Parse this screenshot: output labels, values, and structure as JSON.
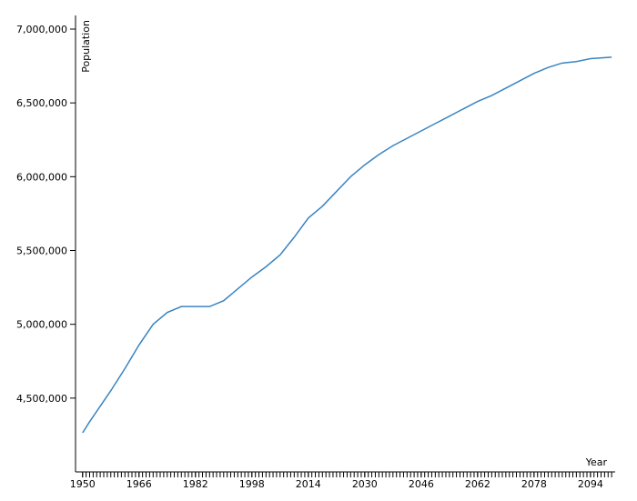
{
  "chart_data": {
    "type": "line",
    "x_label": "Year",
    "y_label": "Population",
    "x": [
      1950,
      1952,
      1954,
      1958,
      1962,
      1966,
      1970,
      1974,
      1978,
      1982,
      1986,
      1990,
      1994,
      1998,
      2002,
      2006,
      2010,
      2014,
      2018,
      2022,
      2026,
      2030,
      2034,
      2038,
      2042,
      2046,
      2050,
      2054,
      2058,
      2062,
      2066,
      2070,
      2074,
      2078,
      2082,
      2086,
      2090,
      2094,
      2100
    ],
    "series": [
      {
        "color": "#3a84c0",
        "values": [
          4265000,
          4340000,
          4410000,
          4550000,
          4700000,
          4860000,
          5000000,
          5080000,
          5120000,
          5120000,
          5120000,
          5160000,
          5240000,
          5320000,
          5390000,
          5470000,
          5590000,
          5720000,
          5800000,
          5900000,
          6000000,
          6080000,
          6150000,
          6210000,
          6260000,
          6310000,
          6360000,
          6410000,
          6460000,
          6510000,
          6550000,
          6600000,
          6650000,
          6700000,
          6740000,
          6770000,
          6780000,
          6800000,
          6810000
        ]
      }
    ],
    "xlim": [
      1948,
      2101
    ],
    "xticks": [
      1950,
      1966,
      1982,
      1998,
      2014,
      2030,
      2046,
      2062,
      2078,
      2094
    ],
    "xminor_ticks": [
      1950,
      1951,
      1952,
      1953,
      1954,
      1955,
      1956,
      1957,
      1958,
      1959,
      1960,
      1961,
      1962,
      1963,
      1964,
      1965,
      1966,
      1967,
      1968,
      1969,
      1970,
      1971,
      1972,
      1973,
      1974,
      1975,
      1976,
      1977,
      1978,
      1979,
      1980,
      1981,
      1982,
      1983,
      1984,
      1985,
      1986,
      1987,
      1988,
      1989,
      1990,
      1991,
      1992,
      1993,
      1994,
      1995,
      1996,
      1997,
      1998,
      1999,
      2000,
      2001,
      2002,
      2003,
      2004,
      2005,
      2006,
      2007,
      2008,
      2009,
      2010,
      2011,
      2012,
      2013,
      2014,
      2015,
      2016,
      2017,
      2018,
      2019,
      2020,
      2021,
      2022,
      2023,
      2024,
      2025,
      2026,
      2027,
      2028,
      2029,
      2030,
      2031,
      2032,
      2033,
      2034,
      2035,
      2036,
      2037,
      2038,
      2039,
      2040,
      2041,
      2042,
      2043,
      2044,
      2045,
      2046,
      2047,
      2048,
      2049,
      2050,
      2051,
      2052,
      2053,
      2054,
      2055,
      2056,
      2057,
      2058,
      2059,
      2060,
      2061,
      2062,
      2063,
      2064,
      2065,
      2066,
      2067,
      2068,
      2069,
      2070,
      2071,
      2072,
      2073,
      2074,
      2075,
      2076,
      2077,
      2078,
      2079,
      2080,
      2081,
      2082,
      2083,
      2084,
      2085,
      2086,
      2087,
      2088,
      2089,
      2090,
      2091,
      2092,
      2093,
      2094,
      2095,
      2096,
      2097,
      2098,
      2099,
      2100
    ],
    "ylim": [
      4000000,
      7000000
    ],
    "yticks": [
      {
        "value": 4500000,
        "label": "4,500,000"
      },
      {
        "value": 5000000,
        "label": "5,000,000"
      },
      {
        "value": 5500000,
        "label": "5,500,000"
      },
      {
        "value": 6000000,
        "label": "6,000,000"
      },
      {
        "value": 6500000,
        "label": "6,500,000"
      },
      {
        "value": 7000000,
        "label": "7,000,000"
      }
    ]
  }
}
